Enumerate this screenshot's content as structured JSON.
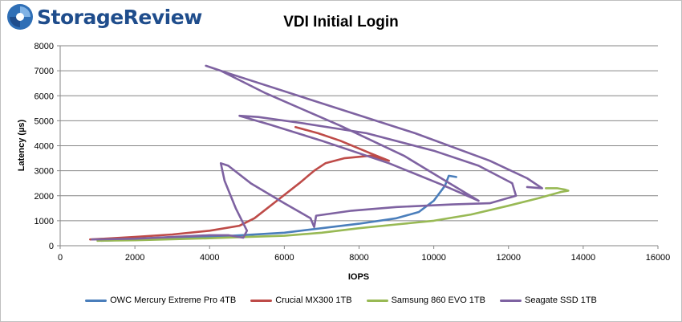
{
  "brand": {
    "name": "StorageReview"
  },
  "chart_data": {
    "type": "line",
    "title": "VDI Initial Login",
    "xlabel": "IOPS",
    "ylabel": "Latency (µs)",
    "xlim": [
      0,
      16000
    ],
    "ylim": [
      0,
      8000
    ],
    "xticks": [
      0,
      2000,
      4000,
      6000,
      8000,
      10000,
      12000,
      14000,
      16000
    ],
    "yticks": [
      0,
      1000,
      2000,
      3000,
      4000,
      5000,
      6000,
      7000,
      8000
    ],
    "grid": "horizontal",
    "legend_position": "bottom",
    "series": [
      {
        "name": "OWC Mercury Extreme Pro 4TB",
        "color": "#4a7ebb",
        "points": [
          [
            1100,
            200
          ],
          [
            2000,
            250
          ],
          [
            3000,
            300
          ],
          [
            4000,
            350
          ],
          [
            5000,
            430
          ],
          [
            6000,
            520
          ],
          [
            7000,
            700
          ],
          [
            8000,
            880
          ],
          [
            9000,
            1100
          ],
          [
            9600,
            1350
          ],
          [
            10000,
            1800
          ],
          [
            10300,
            2400
          ],
          [
            10400,
            2800
          ],
          [
            10600,
            2750
          ]
        ]
      },
      {
        "name": "Crucial MX300 1TB",
        "color": "#be4b48",
        "points": [
          [
            800,
            250
          ],
          [
            2000,
            350
          ],
          [
            3000,
            450
          ],
          [
            4000,
            600
          ],
          [
            4800,
            800
          ],
          [
            5200,
            1100
          ],
          [
            5800,
            1800
          ],
          [
            6400,
            2500
          ],
          [
            6800,
            3000
          ],
          [
            7100,
            3300
          ],
          [
            7600,
            3500
          ],
          [
            8300,
            3600
          ],
          [
            8800,
            3400
          ],
          [
            8300,
            3700
          ],
          [
            7500,
            4200
          ],
          [
            6900,
            4500
          ],
          [
            6300,
            4750
          ]
        ]
      },
      {
        "name": "Samsung 860 EVO 1TB",
        "color": "#98b954",
        "points": [
          [
            1000,
            200
          ],
          [
            2000,
            220
          ],
          [
            3000,
            260
          ],
          [
            4000,
            300
          ],
          [
            5000,
            350
          ],
          [
            6000,
            400
          ],
          [
            7000,
            520
          ],
          [
            8000,
            700
          ],
          [
            9000,
            850
          ],
          [
            10000,
            1000
          ],
          [
            11000,
            1250
          ],
          [
            12000,
            1600
          ],
          [
            12800,
            1900
          ],
          [
            13400,
            2150
          ],
          [
            13600,
            2200
          ],
          [
            13500,
            2250
          ],
          [
            13300,
            2300
          ],
          [
            13000,
            2300
          ]
        ]
      },
      {
        "name": "Seagate SSD 1TB",
        "color": "#7e62a1",
        "points": [
          [
            850,
            250
          ],
          [
            2000,
            280
          ],
          [
            3000,
            350
          ],
          [
            4000,
            420
          ],
          [
            4500,
            420
          ],
          [
            4900,
            320
          ],
          [
            5000,
            600
          ],
          [
            4700,
            1500
          ],
          [
            4400,
            2600
          ],
          [
            4300,
            3300
          ],
          [
            4500,
            3200
          ],
          [
            5100,
            2500
          ],
          [
            6000,
            1700
          ],
          [
            6700,
            1100
          ],
          [
            6800,
            750
          ],
          [
            6850,
            1200
          ],
          [
            7800,
            1400
          ],
          [
            9000,
            1550
          ],
          [
            10500,
            1650
          ],
          [
            11500,
            1700
          ],
          [
            12200,
            2000
          ],
          [
            12100,
            2500
          ],
          [
            11200,
            3200
          ],
          [
            10000,
            3800
          ],
          [
            8200,
            4500
          ],
          [
            6500,
            4900
          ],
          [
            5300,
            5150
          ],
          [
            4800,
            5200
          ],
          [
            5600,
            4850
          ],
          [
            7000,
            4200
          ],
          [
            8800,
            3300
          ],
          [
            10200,
            2450
          ],
          [
            11200,
            1800
          ],
          [
            10200,
            2700
          ],
          [
            9200,
            3600
          ],
          [
            7500,
            4800
          ],
          [
            5500,
            6100
          ],
          [
            4300,
            7000
          ],
          [
            3900,
            7200
          ],
          [
            4500,
            6900
          ],
          [
            7000,
            5700
          ],
          [
            9500,
            4500
          ],
          [
            11500,
            3400
          ],
          [
            12500,
            2700
          ],
          [
            12900,
            2300
          ],
          [
            12500,
            2350
          ]
        ]
      }
    ]
  }
}
